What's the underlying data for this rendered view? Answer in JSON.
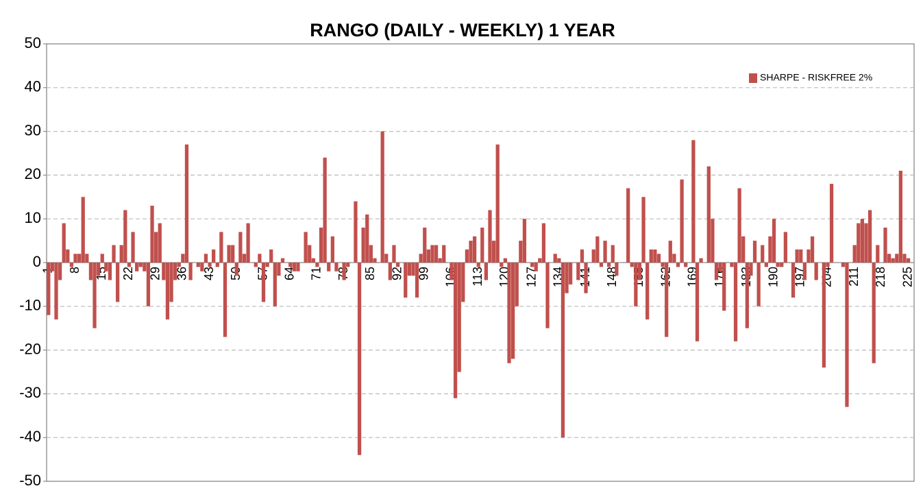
{
  "chart_data": {
    "type": "bar",
    "title": "RANGO (DAILY - WEEKLY)  1 YEAR",
    "legend": "upper right",
    "grid": true,
    "ylim": [
      -50,
      50
    ],
    "yticks": [
      -50,
      -40,
      -30,
      -20,
      -10,
      0,
      10,
      20,
      30,
      40,
      50
    ],
    "categories": [
      "1",
      null,
      null,
      null,
      null,
      null,
      null,
      "8",
      null,
      null,
      null,
      null,
      null,
      null,
      "15",
      null,
      null,
      null,
      null,
      null,
      null,
      "22",
      null,
      null,
      null,
      null,
      null,
      null,
      "29",
      null,
      null,
      null,
      null,
      null,
      null,
      "36",
      null,
      null,
      null,
      null,
      null,
      null,
      "43",
      null,
      null,
      null,
      null,
      null,
      null,
      "50",
      null,
      null,
      null,
      null,
      null,
      null,
      "57",
      null,
      null,
      null,
      null,
      null,
      null,
      "64",
      null,
      null,
      null,
      null,
      null,
      null,
      "71",
      null,
      null,
      null,
      null,
      null,
      null,
      "78",
      null,
      null,
      null,
      null,
      null,
      null,
      "85",
      null,
      null,
      null,
      null,
      null,
      null,
      "92",
      null,
      null,
      null,
      null,
      null,
      null,
      "99",
      null,
      null,
      null,
      null,
      null,
      null,
      "106",
      null,
      null,
      null,
      null,
      null,
      null,
      "113",
      null,
      null,
      null,
      null,
      null,
      null,
      "120",
      null,
      null,
      null,
      null,
      null,
      null,
      "127",
      null,
      null,
      null,
      null,
      null,
      null,
      "134",
      null,
      null,
      null,
      null,
      null,
      null,
      "141",
      null,
      null,
      null,
      null,
      null,
      null,
      "148",
      null,
      null,
      null,
      null,
      null,
      null,
      "155",
      null,
      null,
      null,
      null,
      null,
      null,
      "162",
      null,
      null,
      null,
      null,
      null,
      null,
      "169",
      null,
      null,
      null,
      null,
      null,
      null,
      "176",
      null,
      null,
      null,
      null,
      null,
      null,
      "183",
      null,
      null,
      null,
      null,
      null,
      null,
      "190",
      null,
      null,
      null,
      null,
      null,
      null,
      "197",
      null,
      null,
      null,
      null,
      null,
      null,
      "204",
      null,
      null,
      null,
      null,
      null,
      null,
      "211",
      null,
      null,
      null,
      null,
      null,
      null,
      "218",
      null,
      null,
      null,
      null,
      null,
      null,
      "225",
      null
    ],
    "series": [
      {
        "name": "SHARPE - RISKFREE 2%",
        "color": "#c0504d",
        "values": [
          -12,
          -2,
          -13,
          -4,
          9,
          3,
          -1,
          2,
          2,
          15,
          2,
          -4,
          -15,
          -3,
          2,
          -2,
          -4,
          4,
          -9,
          4,
          12,
          -1,
          7,
          -2,
          -1,
          -2,
          -10,
          13,
          7,
          9,
          -4,
          -13,
          -9,
          -4,
          -1,
          2,
          27,
          -4,
          0,
          -1,
          -2,
          2,
          -1,
          3,
          -1,
          7,
          -17,
          4,
          4,
          -3,
          7,
          2,
          9,
          0,
          -1,
          2,
          -9,
          -1,
          3,
          -10,
          -3,
          1,
          0,
          -1,
          -2,
          -2,
          0,
          7,
          4,
          1,
          -1,
          8,
          24,
          -2,
          6,
          -2,
          0,
          -4,
          -1,
          0,
          14,
          -44,
          8,
          11,
          4,
          1,
          0,
          30,
          2,
          -4,
          4,
          -1,
          0,
          -8,
          -3,
          -3,
          -8,
          2,
          8,
          3,
          4,
          4,
          1,
          4,
          0,
          -4,
          -31,
          -25,
          -9,
          3,
          5,
          6,
          -1,
          8,
          -4,
          12,
          5,
          27,
          -1,
          1,
          -23,
          -22,
          -10,
          5,
          10,
          0,
          -1,
          -2,
          1,
          9,
          -15,
          0,
          2,
          1,
          -40,
          -7,
          -5,
          0,
          -4,
          3,
          -7,
          0,
          3,
          6,
          -1,
          5,
          -1,
          4,
          -3,
          0,
          0,
          17,
          -1,
          -10,
          -4,
          15,
          -13,
          3,
          3,
          2,
          -1,
          -17,
          5,
          2,
          -1,
          19,
          -1,
          0,
          28,
          -18,
          1,
          0,
          22,
          10,
          -4,
          -2,
          -11,
          0,
          -1,
          -18,
          17,
          6,
          -15,
          -3,
          5,
          -10,
          4,
          -1,
          6,
          10,
          -1,
          -1,
          7,
          0,
          -8,
          3,
          3,
          -4,
          3,
          6,
          -4,
          0,
          -24,
          -1,
          18,
          0,
          0,
          -1,
          -33,
          0,
          4,
          9,
          10,
          9,
          12,
          -23,
          4,
          0,
          8,
          2,
          1,
          2,
          21,
          2,
          1,
          0
        ]
      }
    ]
  }
}
